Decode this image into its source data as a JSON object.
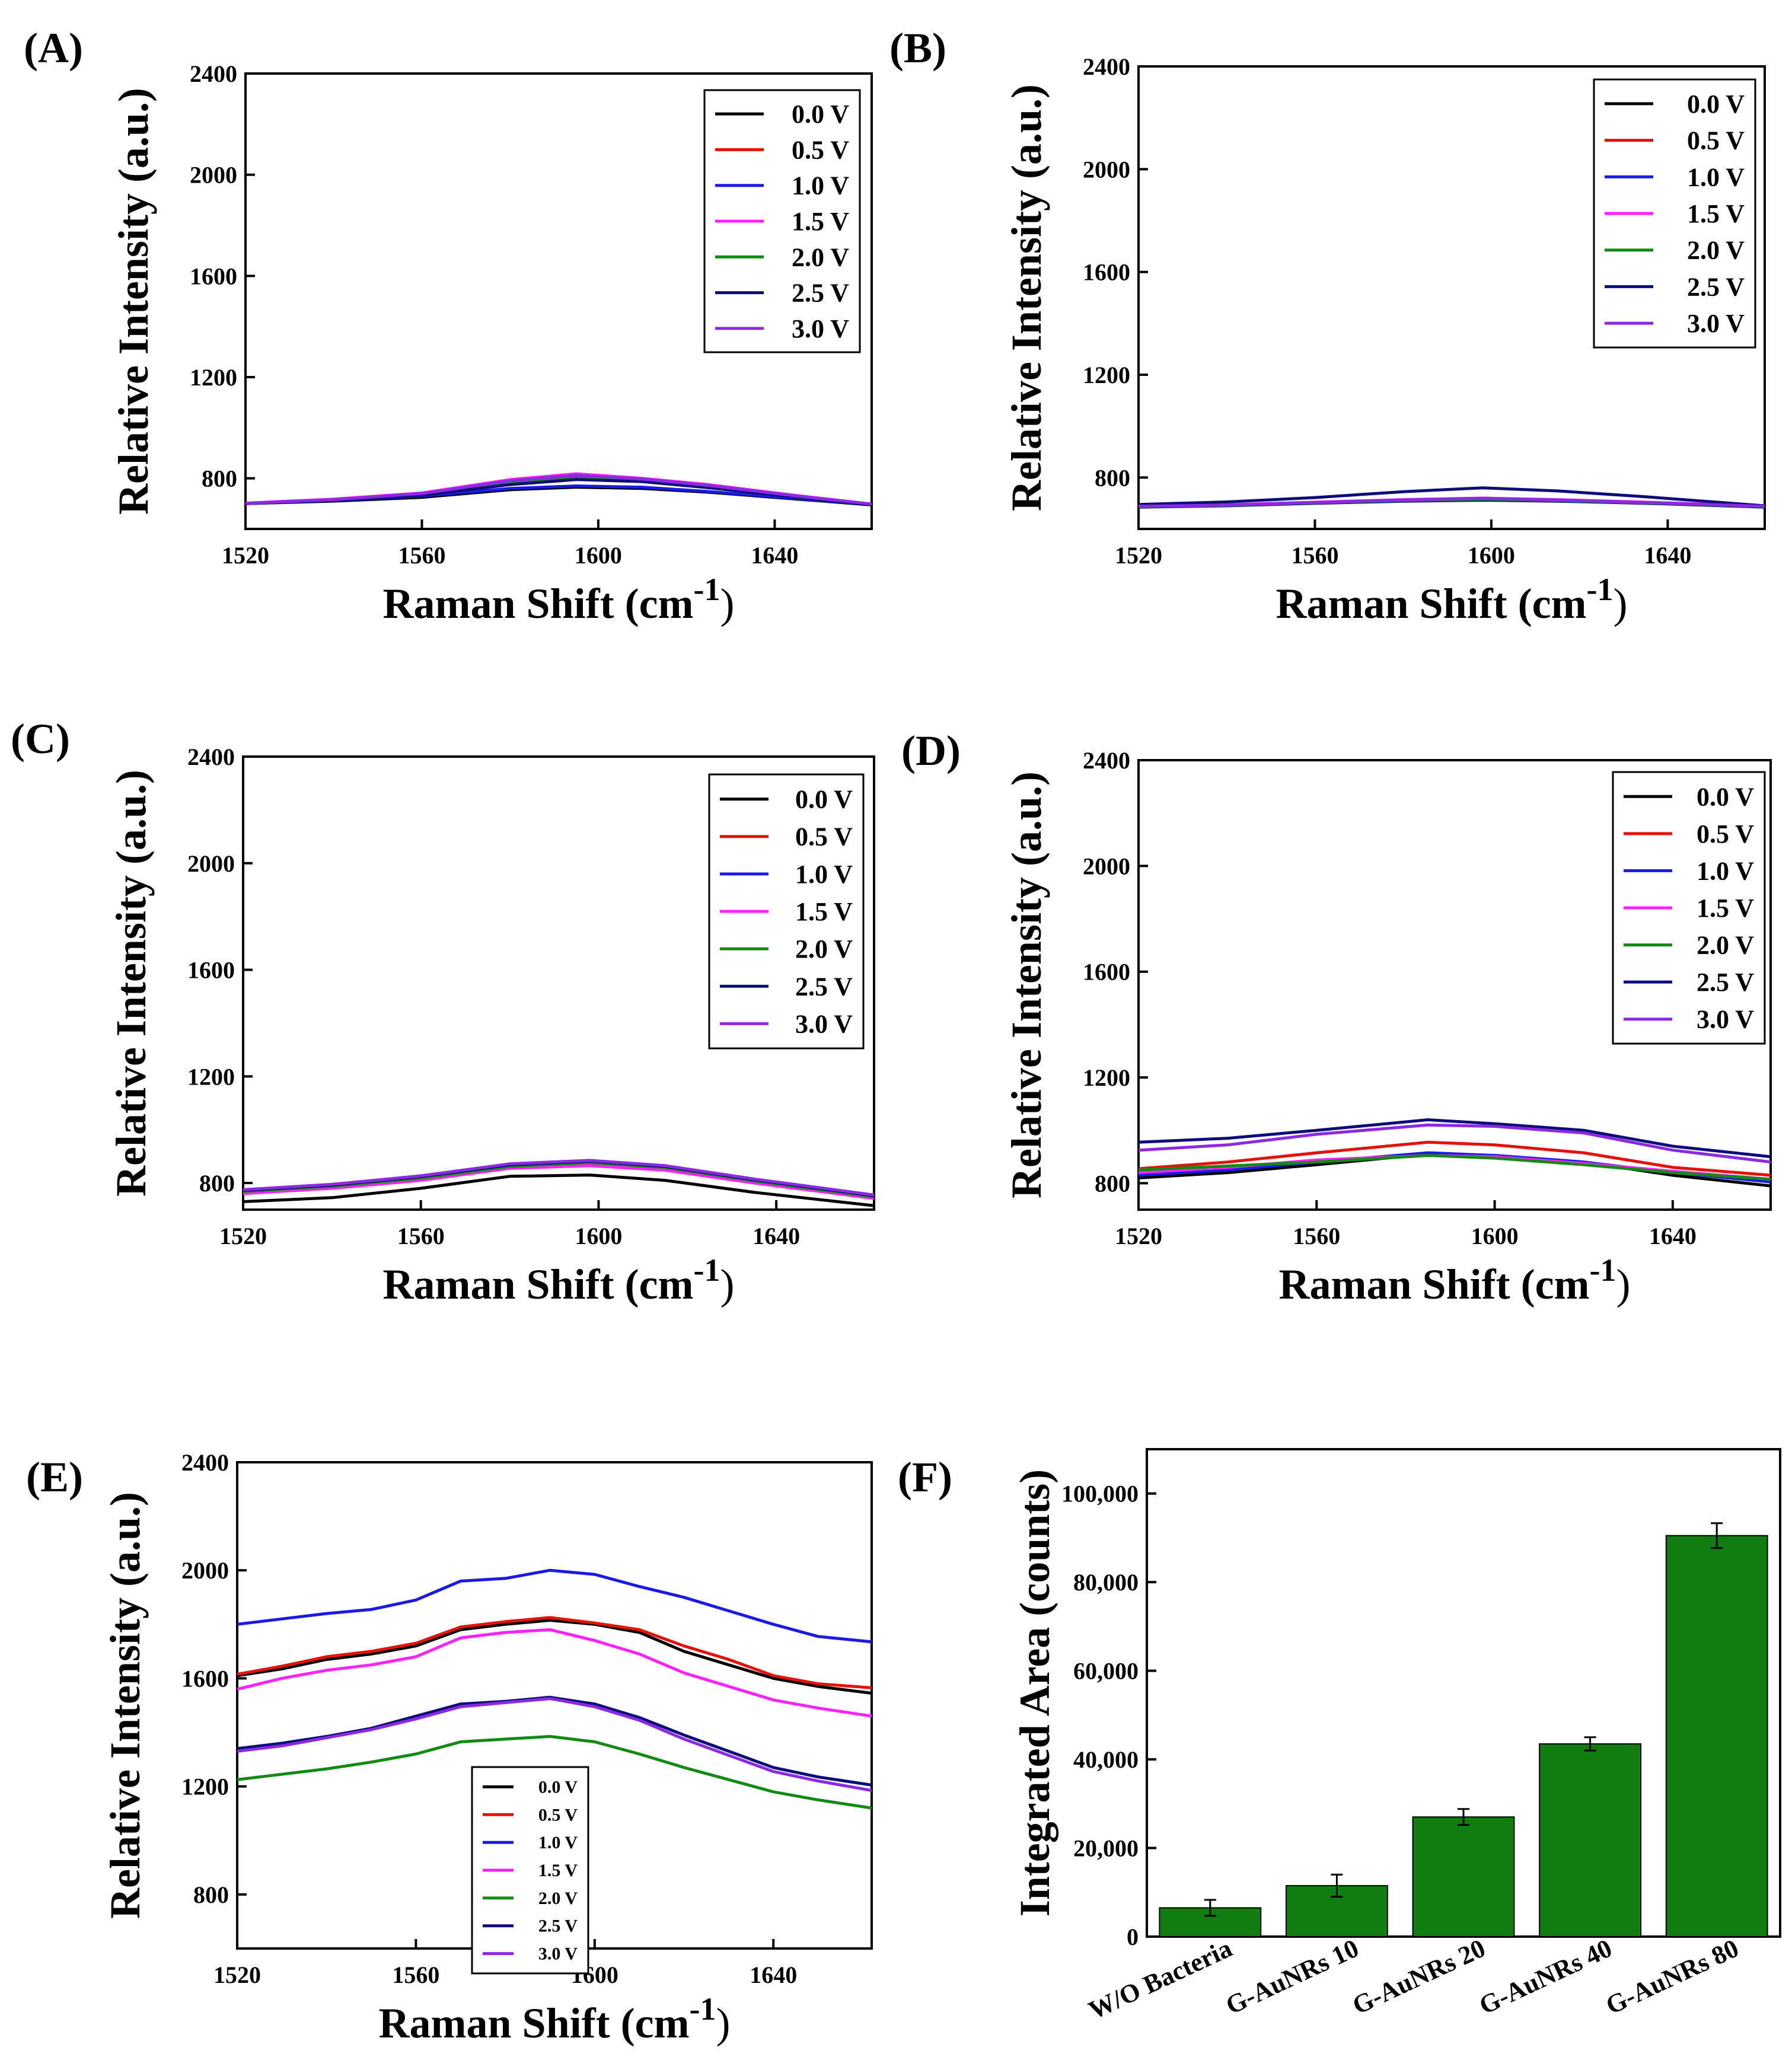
{
  "figure": {
    "panel_labels": [
      "(A)",
      "(B)",
      "(C)",
      "(D)",
      "(E)",
      "(F)"
    ]
  },
  "series_colors": {
    "0.0 V": "#000000",
    "0.5 V": "#e3120b",
    "1.0 V": "#1a1ae6",
    "1.5 V": "#ff22ff",
    "2.0 V": "#138a13",
    "2.5 V": "#0d0d7a",
    "3.0 V": "#8a2be2"
  },
  "chart_data": [
    {
      "panel": "(A)",
      "type": "line",
      "xlabel": "Raman Shift (cm",
      "xlabel_sup": "-1",
      "xlabel_close": ")",
      "ylabel": "Relative Intensity (a.u.)",
      "xlim": [
        1520,
        1662
      ],
      "ylim": [
        600,
        2400
      ],
      "xticks": [
        1520,
        1560,
        1600,
        1640
      ],
      "yticks": [
        800,
        1200,
        1600,
        2000,
        2400
      ],
      "legend": "top-right",
      "series": [
        {
          "name": "0.0 V",
          "x": [
            1520,
            1540,
            1560,
            1580,
            1595,
            1610,
            1625,
            1645,
            1662
          ],
          "values": [
            700,
            710,
            725,
            755,
            765,
            760,
            745,
            718,
            695
          ]
        },
        {
          "name": "0.5 V",
          "x": [
            1520,
            1540,
            1560,
            1580,
            1595,
            1610,
            1625,
            1645,
            1662
          ],
          "values": [
            700,
            715,
            738,
            790,
            810,
            795,
            770,
            730,
            698
          ]
        },
        {
          "name": "1.0 V",
          "x": [
            1520,
            1540,
            1560,
            1580,
            1595,
            1610,
            1625,
            1645,
            1662
          ],
          "values": [
            700,
            712,
            730,
            760,
            770,
            765,
            748,
            720,
            696
          ]
        },
        {
          "name": "1.5 V",
          "x": [
            1520,
            1540,
            1560,
            1580,
            1595,
            1610,
            1625,
            1645,
            1662
          ],
          "values": [
            702,
            718,
            742,
            795,
            818,
            800,
            775,
            732,
            698
          ]
        },
        {
          "name": "2.0 V",
          "x": [
            1520,
            1540,
            1560,
            1580,
            1595,
            1610,
            1625,
            1645,
            1662
          ],
          "values": [
            700,
            714,
            735,
            780,
            800,
            790,
            765,
            727,
            697
          ]
        },
        {
          "name": "2.5 V",
          "x": [
            1520,
            1540,
            1560,
            1580,
            1595,
            1610,
            1625,
            1645,
            1662
          ],
          "values": [
            700,
            713,
            733,
            775,
            795,
            787,
            763,
            725,
            696
          ]
        },
        {
          "name": "3.0 V",
          "x": [
            1520,
            1540,
            1560,
            1580,
            1595,
            1610,
            1625,
            1645,
            1662
          ],
          "values": [
            701,
            716,
            740,
            790,
            812,
            797,
            772,
            730,
            698
          ]
        }
      ]
    },
    {
      "panel": "(B)",
      "type": "line",
      "xlabel": "Raman Shift (cm",
      "xlabel_sup": "-1",
      "xlabel_close": ")",
      "ylabel": "Relative Intensity (a.u.)",
      "xlim": [
        1520,
        1662
      ],
      "ylim": [
        600,
        2400
      ],
      "xticks": [
        1520,
        1560,
        1600,
        1640
      ],
      "yticks": [
        800,
        1200,
        1600,
        2000,
        2400
      ],
      "legend": "top-right",
      "series": [
        {
          "name": "0.0 V",
          "x": [
            1520,
            1540,
            1560,
            1580,
            1598,
            1615,
            1635,
            1662
          ],
          "values": [
            685,
            690,
            700,
            708,
            712,
            708,
            700,
            685
          ]
        },
        {
          "name": "0.5 V",
          "x": [
            1520,
            1540,
            1560,
            1580,
            1598,
            1615,
            1635,
            1662
          ],
          "values": [
            688,
            693,
            703,
            712,
            718,
            712,
            703,
            688
          ]
        },
        {
          "name": "1.0 V",
          "x": [
            1520,
            1540,
            1560,
            1580,
            1598,
            1615,
            1635,
            1662
          ],
          "values": [
            686,
            691,
            701,
            709,
            714,
            709,
            701,
            686
          ]
        },
        {
          "name": "1.5 V",
          "x": [
            1520,
            1540,
            1560,
            1580,
            1598,
            1615,
            1635,
            1662
          ],
          "values": [
            689,
            694,
            704,
            714,
            720,
            714,
            704,
            689
          ]
        },
        {
          "name": "2.0 V",
          "x": [
            1520,
            1540,
            1560,
            1580,
            1598,
            1615,
            1635,
            1662
          ],
          "values": [
            687,
            692,
            702,
            711,
            716,
            711,
            702,
            687
          ]
        },
        {
          "name": "2.5 V",
          "x": [
            1520,
            1540,
            1560,
            1580,
            1598,
            1615,
            1635,
            1662
          ],
          "values": [
            695,
            705,
            722,
            745,
            760,
            748,
            725,
            690
          ]
        },
        {
          "name": "3.0 V",
          "x": [
            1520,
            1540,
            1560,
            1580,
            1598,
            1615,
            1635,
            1662
          ],
          "values": [
            688,
            693,
            703,
            713,
            719,
            713,
            703,
            688
          ]
        }
      ]
    },
    {
      "panel": "(C)",
      "type": "line",
      "xlabel": "Raman Shift (cm",
      "xlabel_sup": "-1",
      "xlabel_close": ")",
      "ylabel": "Relative Intensity (a.u.)",
      "xlim": [
        1520,
        1662
      ],
      "ylim": [
        700,
        2400
      ],
      "xticks": [
        1520,
        1560,
        1600,
        1640
      ],
      "yticks": [
        800,
        1200,
        1600,
        2000,
        2400
      ],
      "legend": "top-right",
      "series": [
        {
          "name": "0.0 V",
          "x": [
            1520,
            1540,
            1560,
            1580,
            1598,
            1615,
            1635,
            1662
          ],
          "values": [
            730,
            745,
            780,
            825,
            830,
            810,
            765,
            715
          ]
        },
        {
          "name": "0.5 V",
          "x": [
            1520,
            1540,
            1560,
            1580,
            1598,
            1615,
            1635,
            1662
          ],
          "values": [
            765,
            785,
            815,
            860,
            875,
            855,
            805,
            745
          ]
        },
        {
          "name": "1.0 V",
          "x": [
            1520,
            1540,
            1560,
            1580,
            1598,
            1615,
            1635,
            1662
          ],
          "values": [
            770,
            790,
            820,
            865,
            880,
            860,
            810,
            750
          ]
        },
        {
          "name": "1.5 V",
          "x": [
            1520,
            1540,
            1560,
            1580,
            1598,
            1615,
            1635,
            1662
          ],
          "values": [
            760,
            780,
            810,
            855,
            865,
            848,
            800,
            742
          ]
        },
        {
          "name": "2.0 V",
          "x": [
            1520,
            1540,
            1560,
            1580,
            1598,
            1615,
            1635,
            1662
          ],
          "values": [
            768,
            788,
            818,
            862,
            877,
            858,
            808,
            748
          ]
        },
        {
          "name": "2.5 V",
          "x": [
            1520,
            1540,
            1560,
            1580,
            1598,
            1615,
            1635,
            1662
          ],
          "values": [
            772,
            792,
            824,
            868,
            882,
            862,
            812,
            752
          ]
        },
        {
          "name": "3.0 V",
          "x": [
            1520,
            1540,
            1560,
            1580,
            1598,
            1615,
            1635,
            1662
          ],
          "values": [
            775,
            795,
            827,
            872,
            885,
            865,
            815,
            755
          ]
        }
      ]
    },
    {
      "panel": "(D)",
      "type": "line",
      "xlabel": "Raman Shift (cm",
      "xlabel_sup": "-1",
      "xlabel_close": ")",
      "ylabel": "Relative Intensity (a.u.)",
      "xlim": [
        1520,
        1662
      ],
      "ylim": [
        700,
        2400
      ],
      "xticks": [
        1520,
        1560,
        1600,
        1640
      ],
      "yticks": [
        800,
        1200,
        1600,
        2000,
        2400
      ],
      "legend": "top-right",
      "series": [
        {
          "name": "0.0 V",
          "x": [
            1520,
            1540,
            1560,
            1585,
            1600,
            1620,
            1640,
            1662
          ],
          "values": [
            820,
            840,
            870,
            910,
            905,
            880,
            830,
            790
          ]
        },
        {
          "name": "0.5 V",
          "x": [
            1520,
            1540,
            1560,
            1585,
            1600,
            1620,
            1640,
            1662
          ],
          "values": [
            855,
            880,
            915,
            955,
            945,
            915,
            860,
            830
          ]
        },
        {
          "name": "1.0 V",
          "x": [
            1520,
            1540,
            1560,
            1585,
            1600,
            1620,
            1640,
            1662
          ],
          "values": [
            830,
            850,
            880,
            915,
            905,
            880,
            840,
            805
          ]
        },
        {
          "name": "1.5 V",
          "x": [
            1520,
            1540,
            1560,
            1585,
            1600,
            1620,
            1640,
            1662
          ],
          "values": [
            840,
            860,
            888,
            905,
            900,
            875,
            845,
            815
          ]
        },
        {
          "name": "2.0 V",
          "x": [
            1520,
            1540,
            1560,
            1585,
            1600,
            1620,
            1640,
            1662
          ],
          "values": [
            850,
            865,
            880,
            905,
            895,
            870,
            840,
            815
          ]
        },
        {
          "name": "2.5 V",
          "x": [
            1520,
            1540,
            1560,
            1585,
            1600,
            1620,
            1640,
            1662
          ],
          "values": [
            955,
            970,
            1000,
            1040,
            1025,
            1000,
            940,
            900
          ]
        },
        {
          "name": "3.0 V",
          "x": [
            1520,
            1540,
            1560,
            1585,
            1600,
            1620,
            1640,
            1662
          ],
          "values": [
            925,
            945,
            985,
            1020,
            1015,
            990,
            925,
            880
          ]
        }
      ]
    },
    {
      "panel": "(E)",
      "type": "line",
      "xlabel": "Raman Shift (cm",
      "xlabel_sup": "-1",
      "xlabel_close": ")",
      "ylabel": "Relative Intensity (a.u.)",
      "xlim": [
        1520,
        1662
      ],
      "ylim": [
        600,
        2400
      ],
      "xticks": [
        1520,
        1560,
        1600,
        1640
      ],
      "yticks": [
        800,
        1200,
        1600,
        2000,
        2400
      ],
      "legend": "bottom-center",
      "series": [
        {
          "name": "0.0 V",
          "x": [
            1520,
            1530,
            1540,
            1550,
            1560,
            1570,
            1580,
            1590,
            1600,
            1610,
            1620,
            1630,
            1640,
            1650,
            1662
          ],
          "values": [
            1610,
            1635,
            1670,
            1690,
            1720,
            1780,
            1800,
            1815,
            1800,
            1770,
            1700,
            1650,
            1600,
            1570,
            1545
          ]
        },
        {
          "name": "0.5 V",
          "x": [
            1520,
            1530,
            1540,
            1550,
            1560,
            1570,
            1580,
            1590,
            1600,
            1610,
            1620,
            1630,
            1640,
            1650,
            1662
          ],
          "values": [
            1615,
            1645,
            1680,
            1700,
            1730,
            1790,
            1810,
            1825,
            1805,
            1780,
            1720,
            1670,
            1610,
            1580,
            1565
          ]
        },
        {
          "name": "1.0 V",
          "x": [
            1520,
            1530,
            1540,
            1550,
            1560,
            1570,
            1580,
            1590,
            1600,
            1610,
            1620,
            1630,
            1640,
            1650,
            1662
          ],
          "values": [
            1800,
            1820,
            1840,
            1855,
            1890,
            1960,
            1970,
            2000,
            1985,
            1940,
            1900,
            1850,
            1800,
            1755,
            1735
          ]
        },
        {
          "name": "1.5 V",
          "x": [
            1520,
            1530,
            1540,
            1550,
            1560,
            1570,
            1580,
            1590,
            1600,
            1610,
            1620,
            1630,
            1640,
            1650,
            1662
          ],
          "values": [
            1560,
            1600,
            1630,
            1650,
            1680,
            1750,
            1770,
            1780,
            1740,
            1690,
            1620,
            1570,
            1520,
            1490,
            1460
          ]
        },
        {
          "name": "2.0 V",
          "x": [
            1520,
            1530,
            1540,
            1550,
            1560,
            1570,
            1580,
            1590,
            1600,
            1610,
            1620,
            1630,
            1640,
            1650,
            1662
          ],
          "values": [
            1225,
            1245,
            1265,
            1290,
            1320,
            1365,
            1375,
            1385,
            1365,
            1320,
            1270,
            1225,
            1180,
            1150,
            1120
          ]
        },
        {
          "name": "2.5 V",
          "x": [
            1520,
            1530,
            1540,
            1550,
            1560,
            1570,
            1580,
            1590,
            1600,
            1610,
            1620,
            1630,
            1640,
            1650,
            1662
          ],
          "values": [
            1340,
            1360,
            1385,
            1415,
            1460,
            1505,
            1515,
            1530,
            1505,
            1455,
            1390,
            1330,
            1270,
            1235,
            1205
          ]
        },
        {
          "name": "3.0 V",
          "x": [
            1520,
            1530,
            1540,
            1550,
            1560,
            1570,
            1580,
            1590,
            1600,
            1610,
            1620,
            1630,
            1640,
            1650,
            1662
          ],
          "values": [
            1330,
            1350,
            1380,
            1410,
            1450,
            1495,
            1510,
            1525,
            1495,
            1445,
            1375,
            1315,
            1255,
            1220,
            1185
          ]
        }
      ]
    },
    {
      "panel": "(F)",
      "type": "bar",
      "ylabel": "Integrated Area (counts)",
      "ylim": [
        0,
        110000
      ],
      "yticks": [
        0,
        20000,
        40000,
        60000,
        80000,
        100000
      ],
      "ytick_labels": [
        "0",
        "20,000",
        "40,000",
        "60,000",
        "80,000",
        "100,000"
      ],
      "categories": [
        "W/O Bacteria",
        "G-AuNRs 10",
        "G-AuNRs 20",
        "G-AuNRs 40",
        "G-AuNRs 80"
      ],
      "values": [
        6500,
        11500,
        27000,
        43500,
        90500
      ],
      "errors": [
        1800,
        2500,
        1800,
        1500,
        2800
      ],
      "bar_color": "#117d11"
    }
  ]
}
